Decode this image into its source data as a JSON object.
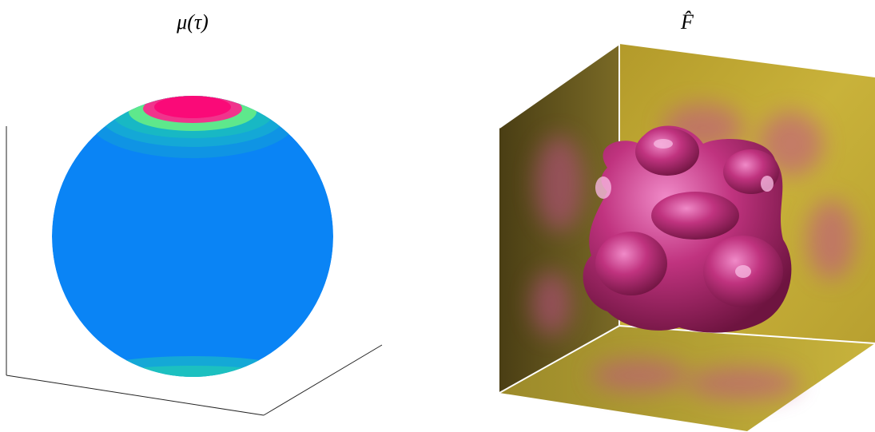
{
  "left_panel": {
    "title": "μ(τ)"
  },
  "right_panel": {
    "title": "F̂"
  }
}
